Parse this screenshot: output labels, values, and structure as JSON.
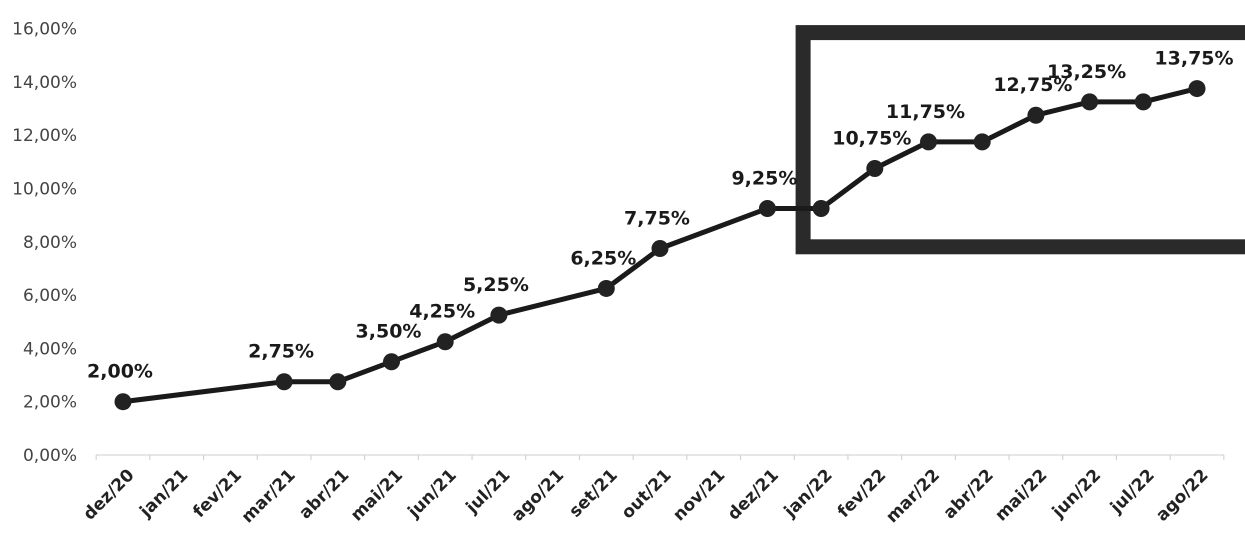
{
  "chart_data": {
    "type": "line",
    "title": "",
    "xlabel": "",
    "ylabel": "",
    "categories": [
      "dez/20",
      "jan/21",
      "fev/21",
      "mar/21",
      "abr/21",
      "mai/21",
      "jun/21",
      "jul/21",
      "ago/21",
      "set/21",
      "out/21",
      "nov/21",
      "dez/21",
      "jan/22",
      "fev/22",
      "mar/22",
      "abr/22",
      "mai/22",
      "jun/22",
      "jul/22",
      "ago/22"
    ],
    "y_ticks": [
      "0,00%",
      "2,00%",
      "4,00%",
      "6,00%",
      "8,00%",
      "10,00%",
      "12,00%",
      "14,00%",
      "16,00%"
    ],
    "ylim": [
      0,
      16
    ],
    "grid": false,
    "legend": "none",
    "series": [
      {
        "points": [
          {
            "x": "dez/20",
            "y": 2.0,
            "label": "2,00%"
          },
          {
            "x": "mar/21",
            "y": 2.75,
            "label": "2,75%"
          },
          {
            "x": "abr/21",
            "y": 2.75,
            "label": ""
          },
          {
            "x": "mai/21",
            "y": 3.5,
            "label": "3,50%"
          },
          {
            "x": "jun/21",
            "y": 4.25,
            "label": "4,25%"
          },
          {
            "x": "jul/21",
            "y": 5.25,
            "label": "5,25%"
          },
          {
            "x": "set/21",
            "y": 6.25,
            "label": "6,25%"
          },
          {
            "x": "out/21",
            "y": 7.75,
            "label": "7,75%"
          },
          {
            "x": "dez/21",
            "y": 9.25,
            "label": "9,25%"
          },
          {
            "x": "jan/22",
            "y": 9.25,
            "label": ""
          },
          {
            "x": "fev/22",
            "y": 10.75,
            "label": "10,75%"
          },
          {
            "x": "mar/22",
            "y": 11.75,
            "label": "11,75%"
          },
          {
            "x": "abr/22",
            "y": 11.75,
            "label": ""
          },
          {
            "x": "mai/22",
            "y": 12.75,
            "label": "12,75%"
          },
          {
            "x": "jun/22",
            "y": 13.25,
            "label": "13,25%"
          },
          {
            "x": "jul/22",
            "y": 13.25,
            "label": ""
          },
          {
            "x": "ago/22",
            "y": 13.75,
            "label": "13,75%"
          }
        ]
      }
    ],
    "highlight_range": [
      "jan/22",
      "ago/22"
    ],
    "colors": {
      "line": "#1a1a1a",
      "marker": "#222222",
      "highlight_border": "#2a2a2a",
      "axis": "#cccccc"
    }
  }
}
